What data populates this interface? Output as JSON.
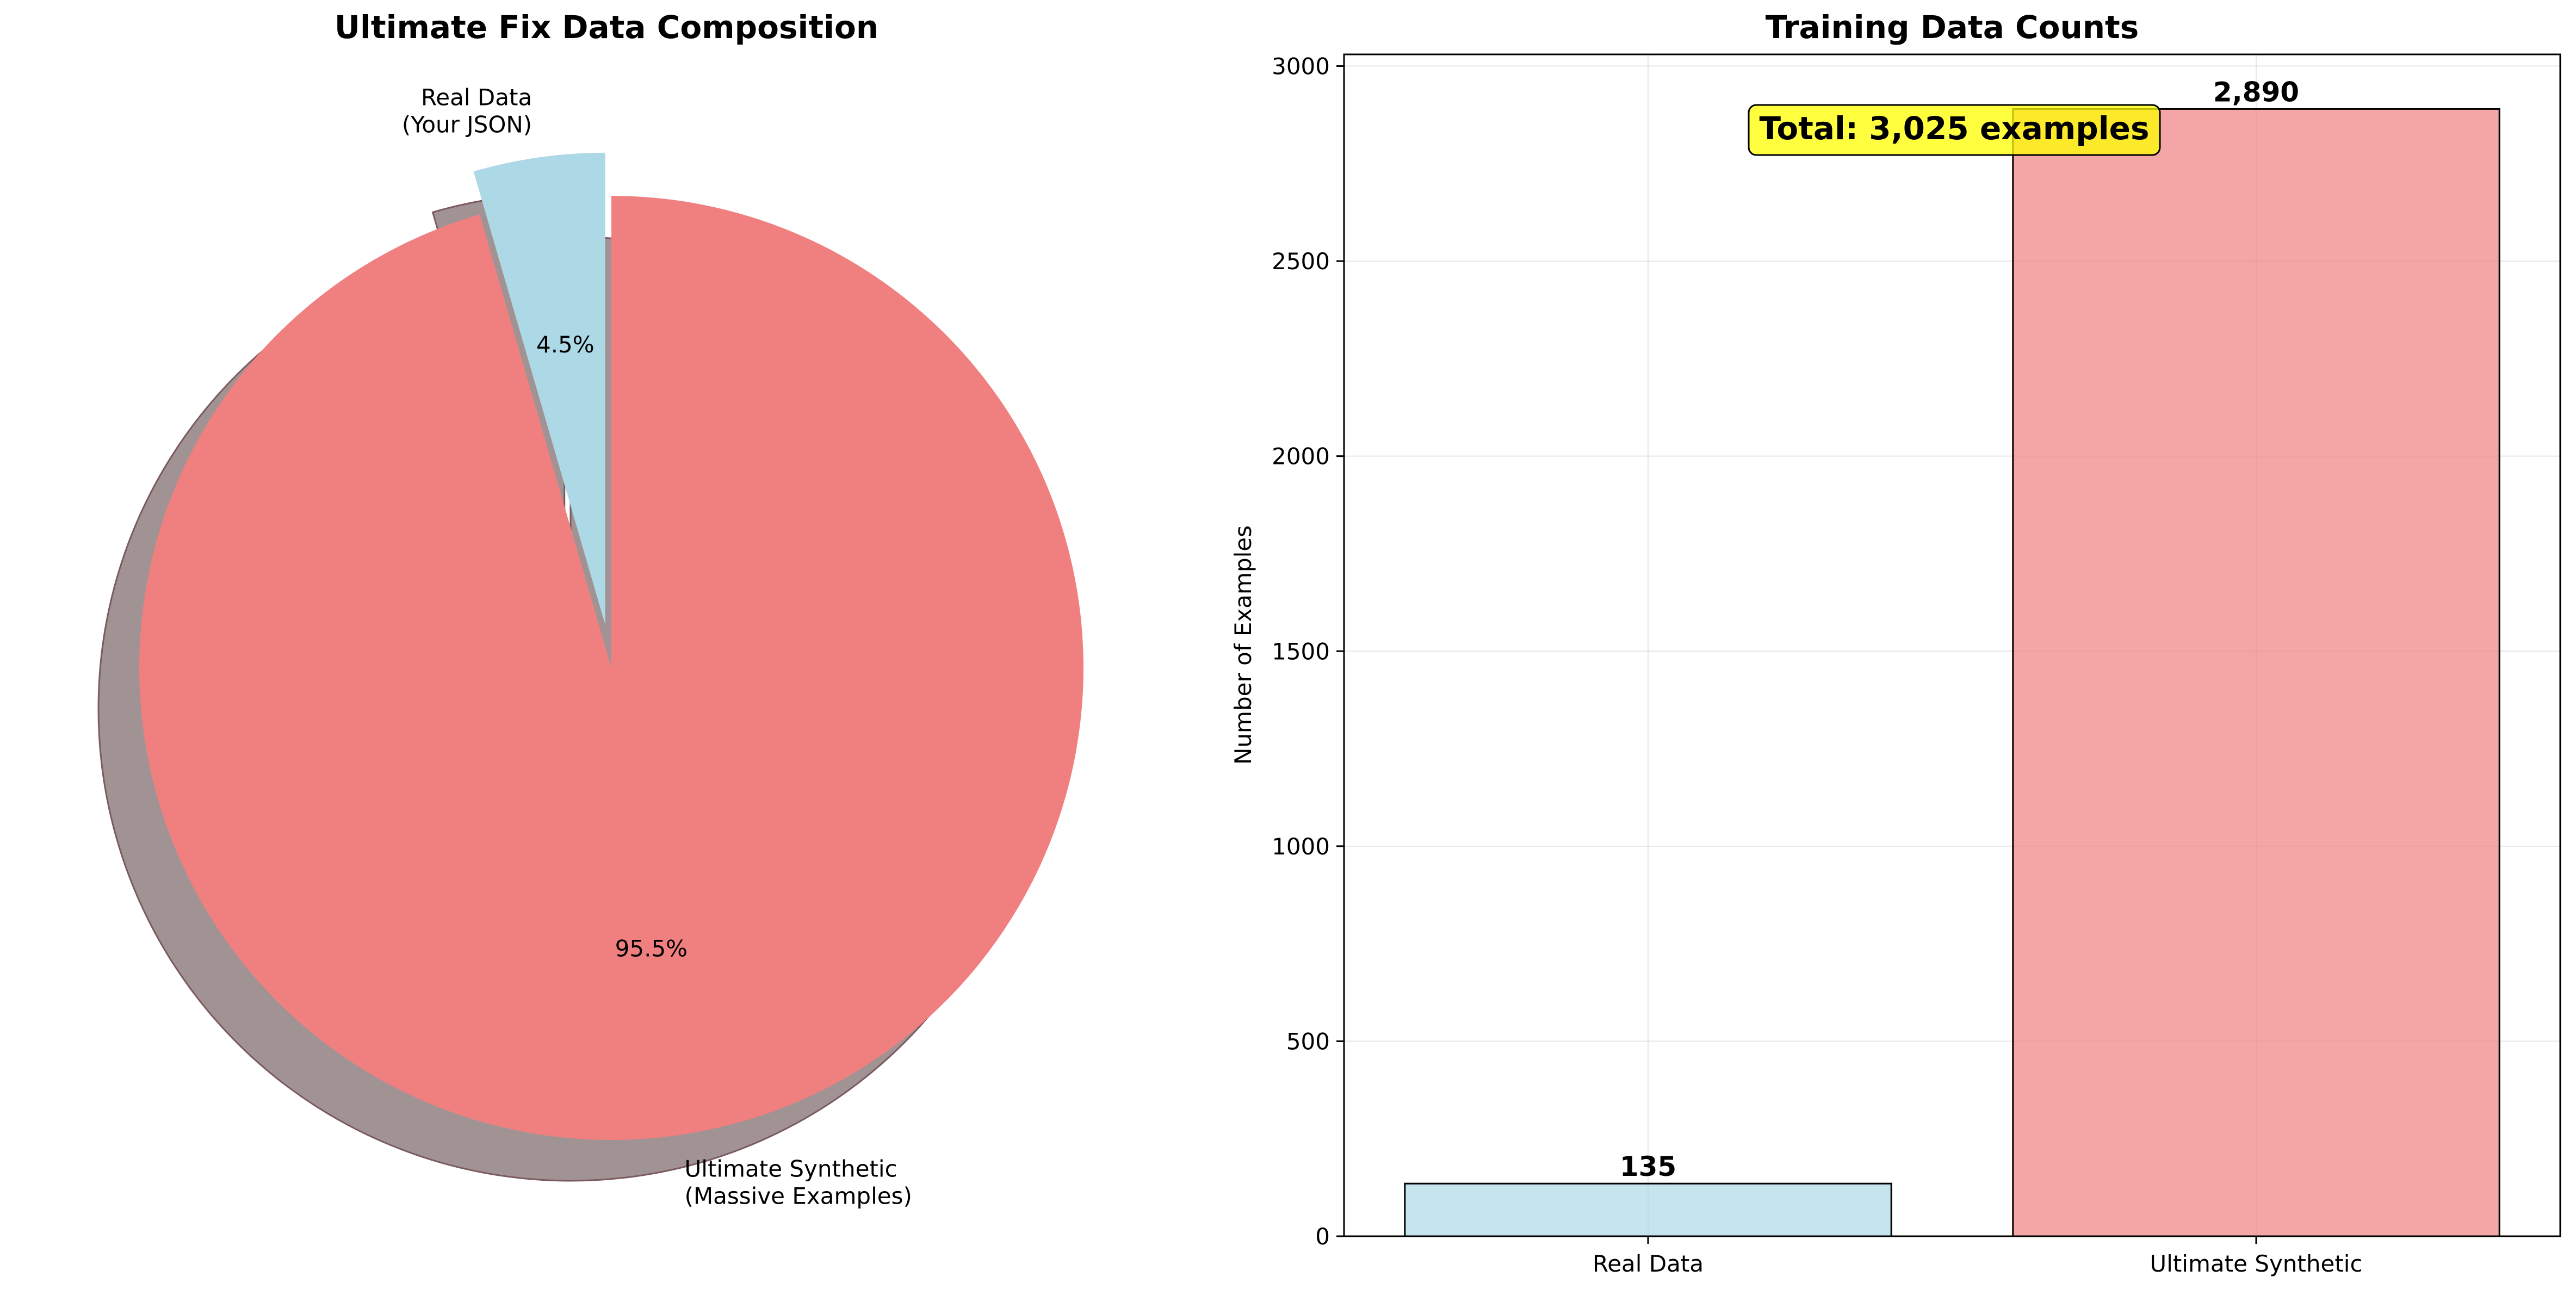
{
  "chart_data": [
    {
      "type": "pie",
      "title": "Ultimate Fix Data Composition",
      "slices": [
        {
          "label": [
            "Real Data",
            "(Your JSON)"
          ],
          "value": 4.5,
          "pct_label": "4.5%",
          "color": "#add8e6",
          "exploded": true
        },
        {
          "label": [
            "Ultimate Synthetic",
            "(Massive Examples)"
          ],
          "value": 95.5,
          "pct_label": "95.5%",
          "color": "#f08080",
          "exploded": false
        }
      ],
      "shadow": true,
      "shadow_color": "#a19393",
      "start_angle_deg": 90,
      "direction": "counterclockwise"
    },
    {
      "type": "bar",
      "title": "Training Data Counts",
      "categories": [
        "Real Data",
        "Ultimate Synthetic"
      ],
      "values": [
        135,
        2890
      ],
      "value_labels": [
        "135",
        "2,890"
      ],
      "colors": [
        "#add8e6",
        "#f08080"
      ],
      "bar_opacity": 0.7,
      "xlabel": "",
      "ylabel": "Number of Examples",
      "ylim": [
        0,
        3030
      ],
      "yticks": [
        0,
        500,
        1000,
        1500,
        2000,
        2500,
        3000
      ],
      "grid": true,
      "annotation": {
        "text": "Total: 3,025 examples",
        "bg_color": "#ffff00"
      }
    }
  ]
}
